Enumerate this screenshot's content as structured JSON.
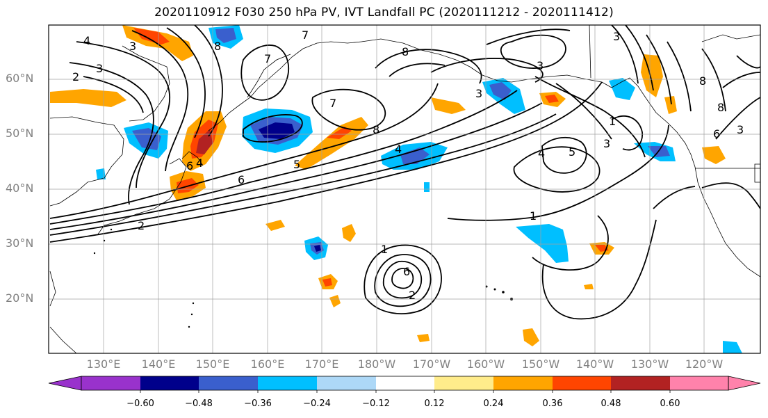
{
  "title": "2020110912 F030 250 hPa PV, IVT Landfall PC (2020111212 - 2020111412)",
  "map": {
    "projection": "PlateCarree",
    "lat_labels": [
      "20°N",
      "30°N",
      "40°N",
      "50°N",
      "60°N"
    ],
    "lon_labels": [
      "130°E",
      "140°E",
      "150°E",
      "160°E",
      "170°E",
      "180°W",
      "170°W",
      "160°W",
      "150°W",
      "140°W",
      "130°W",
      "120°W"
    ],
    "contour_labels": [
      "4",
      "3",
      "2",
      "3",
      "8",
      "7",
      "6",
      "2",
      "4",
      "8",
      "7",
      "8",
      "3",
      "3",
      "3",
      "8",
      "6",
      "5",
      "4",
      "3",
      "1",
      "1",
      "7",
      "2",
      "5",
      "4",
      "6",
      "3",
      "8",
      "1",
      "6"
    ],
    "grid": true
  },
  "colorbar": {
    "ticks": [
      "−0.60",
      "−0.48",
      "−0.36",
      "−0.24",
      "−0.12",
      "0.12",
      "0.24",
      "0.36",
      "0.48",
      "0.60"
    ],
    "colors": {
      "below": "#9932cc",
      "bins": [
        "#9932cc",
        "#00008b",
        "#3a5fcd",
        "#00bfff",
        "#add8f7",
        "#ffffff",
        "#ffec8b",
        "#ffa500",
        "#ff4500",
        "#b22222",
        "#ff82ab"
      ],
      "above": "#ff82ab"
    }
  }
}
